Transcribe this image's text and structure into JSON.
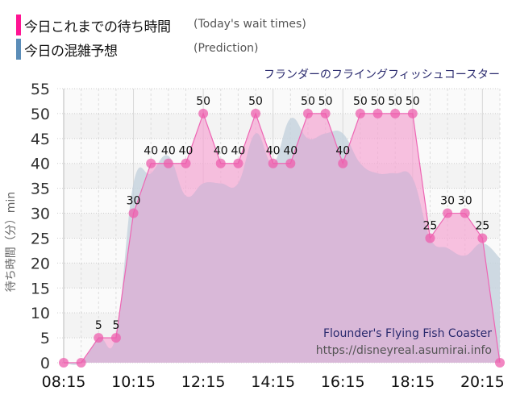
{
  "legend": {
    "today": {
      "label_jp": "今日これまでの待ち時間",
      "label_en": "(Today's wait times)",
      "color": "#ff1493"
    },
    "prediction": {
      "label_jp": "今日の混雑予想",
      "label_en": "(Prediction)",
      "color": "#5b8db8"
    }
  },
  "ride_title_jp": "フランダーのフライングフィッシュコースター",
  "watermark": {
    "ride_name_en": "Flounder's Flying Fish Coaster",
    "url": "https://disneyreal.asumirai.info"
  },
  "colors": {
    "today_line": "#ee66b4",
    "today_fill": "#f5a6d3",
    "today_point": "#ee5fae",
    "prediction_fill": "#c7d3de",
    "overlap_fill": "#d9b8d8",
    "grid": "#cccccc",
    "band": "#f3f3f3"
  },
  "chart_data": {
    "type": "area",
    "title": "フランダーのフライングフィッシュコースター",
    "xlabel": "",
    "ylabel": "待ち時間（分）min",
    "ylim": [
      0,
      55
    ],
    "yticks": [
      0,
      5,
      10,
      15,
      20,
      25,
      30,
      35,
      40,
      45,
      50,
      55
    ],
    "xtick_labels": [
      "08:15",
      "10:15",
      "12:15",
      "14:15",
      "16:15",
      "18:15",
      "20:15"
    ],
    "x": [
      "08:15",
      "08:45",
      "09:15",
      "09:45",
      "10:15",
      "10:45",
      "11:15",
      "11:45",
      "12:15",
      "12:45",
      "13:15",
      "13:45",
      "14:15",
      "14:45",
      "15:15",
      "15:45",
      "16:15",
      "16:45",
      "17:15",
      "17:45",
      "18:15",
      "18:45",
      "19:15",
      "19:45",
      "20:15",
      "20:45"
    ],
    "grid": true,
    "legend_position": "top-left",
    "series": [
      {
        "name": "今日これまでの待ち時間 (Today's wait times)",
        "values": [
          0,
          0,
          5,
          5,
          30,
          40,
          40,
          40,
          50,
          40,
          40,
          50,
          40,
          40,
          50,
          50,
          40,
          50,
          50,
          50,
          50,
          25,
          30,
          30,
          25,
          0
        ],
        "data_labels": [
          "",
          "",
          "5",
          "5",
          "30",
          "40",
          "40",
          "40",
          "50",
          "40",
          "40",
          "50",
          "40",
          "40",
          "50",
          "50",
          "40",
          "50",
          "50",
          "50",
          "50",
          "25",
          "30",
          "30",
          "25",
          ""
        ]
      },
      {
        "name": "今日の混雑予想 (Prediction)",
        "values": [
          0,
          0,
          5,
          5.5,
          36,
          38,
          41.5,
          33.5,
          36,
          36,
          36,
          46,
          40,
          49,
          45,
          46,
          46,
          40,
          38,
          38,
          37,
          25,
          23,
          21.5,
          24,
          21
        ]
      }
    ]
  }
}
